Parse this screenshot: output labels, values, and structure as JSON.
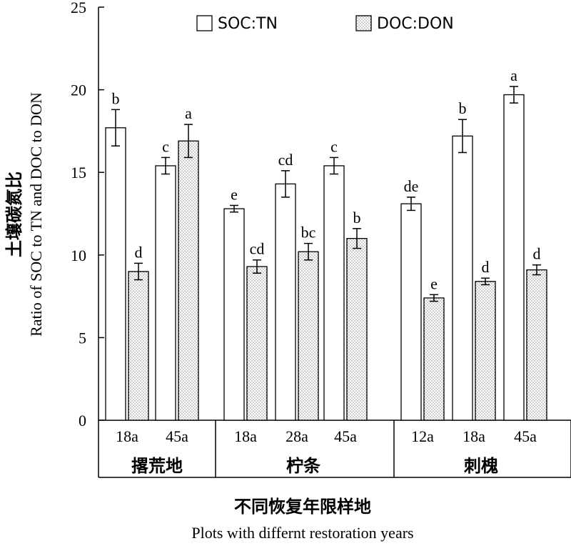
{
  "chart_data": {
    "type": "bar",
    "ylabel_cn": "土壤碳氮比",
    "ylabel_en": "Ratio of  SOC to TN and DOC to DON",
    "xlabel_cn": "不同恢复年限样地",
    "xlabel_en": "Plots with differnt restoration years",
    "ylim": [
      0,
      25
    ],
    "yticks": [
      "0",
      "5",
      "10",
      "15",
      "20",
      "25"
    ],
    "groups": [
      {
        "label": "撂荒地",
        "categories": [
          "18a",
          "45a"
        ]
      },
      {
        "label": "柠条",
        "categories": [
          "18a",
          "28a",
          "45a"
        ]
      },
      {
        "label": "刺槐",
        "categories": [
          "12a",
          "18a",
          "45a"
        ]
      }
    ],
    "categories": [
      "18a",
      "45a",
      "18a",
      "28a",
      "45a",
      "12a",
      "18a",
      "45a"
    ],
    "legend_position": "top",
    "series": [
      {
        "name": "SOC:TN",
        "fill": "open",
        "values": [
          17.7,
          15.4,
          12.8,
          14.3,
          15.4,
          13.1,
          17.2,
          19.7
        ],
        "errors": [
          1.1,
          0.5,
          0.2,
          0.8,
          0.5,
          0.4,
          1.0,
          0.5
        ],
        "letters": [
          "b",
          "c",
          "e",
          "cd",
          "c",
          "de",
          "b",
          "a"
        ]
      },
      {
        "name": "DOC:DON",
        "fill": "dotted",
        "values": [
          9.0,
          16.9,
          9.3,
          10.2,
          11.0,
          7.4,
          8.4,
          9.1
        ],
        "errors": [
          0.5,
          1.0,
          0.4,
          0.5,
          0.6,
          0.2,
          0.2,
          0.3
        ],
        "letters": [
          "d",
          "a",
          "cd",
          "bc",
          "b",
          "e",
          "d",
          "d"
        ]
      }
    ]
  }
}
